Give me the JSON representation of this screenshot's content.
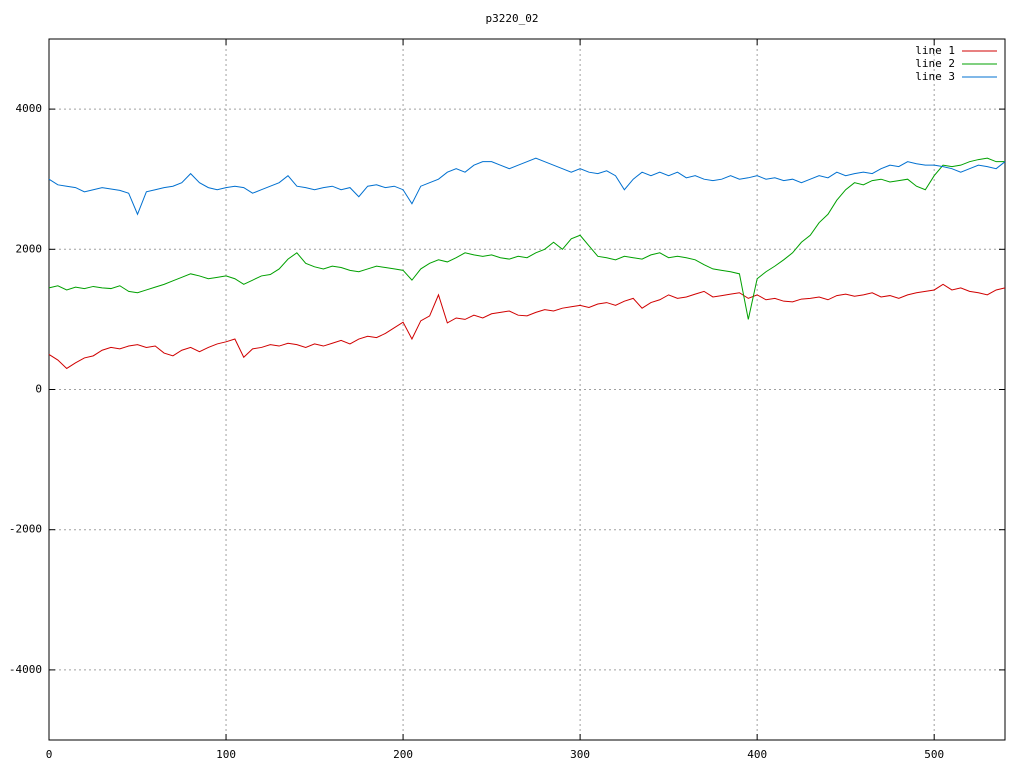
{
  "chart_data": {
    "type": "line",
    "title": "p3220_02",
    "x": [
      0,
      5,
      10,
      15,
      20,
      25,
      30,
      35,
      40,
      45,
      50,
      55,
      60,
      65,
      70,
      75,
      80,
      85,
      90,
      95,
      100,
      105,
      110,
      115,
      120,
      125,
      130,
      135,
      140,
      145,
      150,
      155,
      160,
      165,
      170,
      175,
      180,
      185,
      190,
      195,
      200,
      205,
      210,
      215,
      220,
      225,
      230,
      235,
      240,
      245,
      250,
      255,
      260,
      265,
      270,
      275,
      280,
      285,
      290,
      295,
      300,
      305,
      310,
      315,
      320,
      325,
      330,
      335,
      340,
      345,
      350,
      355,
      360,
      365,
      370,
      375,
      380,
      385,
      390,
      395,
      400,
      405,
      410,
      415,
      420,
      425,
      430,
      435,
      440,
      445,
      450,
      455,
      460,
      465,
      470,
      475,
      480,
      485,
      490,
      495,
      500,
      505,
      510,
      515,
      520,
      525,
      530,
      535,
      540
    ],
    "series": [
      {
        "name": "line 1",
        "color": "#d00000",
        "values": [
          500,
          420,
          300,
          380,
          450,
          480,
          560,
          600,
          580,
          620,
          640,
          600,
          620,
          520,
          480,
          560,
          600,
          540,
          600,
          650,
          680,
          720,
          460,
          580,
          600,
          640,
          620,
          660,
          640,
          600,
          650,
          620,
          660,
          700,
          650,
          720,
          760,
          740,
          800,
          880,
          960,
          720,
          980,
          1050,
          1350,
          950,
          1020,
          1000,
          1060,
          1020,
          1080,
          1100,
          1120,
          1060,
          1050,
          1100,
          1140,
          1120,
          1160,
          1180,
          1200,
          1170,
          1220,
          1240,
          1200,
          1260,
          1300,
          1160,
          1240,
          1280,
          1350,
          1300,
          1320,
          1360,
          1400,
          1320,
          1340,
          1360,
          1380,
          1300,
          1350,
          1280,
          1300,
          1260,
          1250,
          1290,
          1300,
          1320,
          1280,
          1340,
          1360,
          1330,
          1350,
          1380,
          1320,
          1340,
          1300,
          1350,
          1380,
          1400,
          1420,
          1500,
          1420,
          1450,
          1400,
          1380,
          1350,
          1420,
          1450
        ]
      },
      {
        "name": "line 2",
        "color": "#00a000",
        "values": [
          1450,
          1480,
          1420,
          1460,
          1440,
          1470,
          1450,
          1440,
          1480,
          1400,
          1380,
          1420,
          1460,
          1500,
          1550,
          1600,
          1650,
          1620,
          1580,
          1600,
          1620,
          1580,
          1500,
          1560,
          1620,
          1640,
          1720,
          1860,
          1950,
          1800,
          1750,
          1720,
          1760,
          1740,
          1700,
          1680,
          1720,
          1760,
          1740,
          1720,
          1700,
          1560,
          1720,
          1800,
          1850,
          1820,
          1880,
          1950,
          1920,
          1900,
          1920,
          1880,
          1860,
          1900,
          1880,
          1950,
          2000,
          2100,
          2000,
          2150,
          2200,
          2050,
          1900,
          1880,
          1850,
          1900,
          1880,
          1860,
          1920,
          1950,
          1880,
          1900,
          1880,
          1850,
          1780,
          1720,
          1700,
          1680,
          1650,
          1000,
          1580,
          1680,
          1760,
          1850,
          1950,
          2100,
          2200,
          2380,
          2500,
          2700,
          2850,
          2950,
          2920,
          2980,
          3000,
          2960,
          2980,
          3000,
          2900,
          2850,
          3050,
          3200,
          3180,
          3200,
          3250,
          3280,
          3300,
          3250,
          3250
        ]
      },
      {
        "name": "line 3",
        "color": "#0070d0",
        "values": [
          3000,
          2920,
          2900,
          2880,
          2820,
          2850,
          2880,
          2860,
          2840,
          2800,
          2500,
          2820,
          2850,
          2880,
          2900,
          2950,
          3080,
          2950,
          2880,
          2850,
          2880,
          2900,
          2880,
          2800,
          2850,
          2900,
          2950,
          3050,
          2900,
          2880,
          2850,
          2880,
          2900,
          2850,
          2880,
          2750,
          2900,
          2920,
          2880,
          2900,
          2850,
          2650,
          2900,
          2950,
          3000,
          3100,
          3150,
          3100,
          3200,
          3250,
          3250,
          3200,
          3150,
          3200,
          3250,
          3300,
          3250,
          3200,
          3150,
          3100,
          3150,
          3100,
          3080,
          3120,
          3050,
          2850,
          3000,
          3100,
          3050,
          3100,
          3050,
          3100,
          3020,
          3050,
          3000,
          2980,
          3000,
          3050,
          3000,
          3020,
          3050,
          3000,
          3020,
          2980,
          3000,
          2950,
          3000,
          3050,
          3020,
          3100,
          3050,
          3080,
          3100,
          3080,
          3150,
          3200,
          3180,
          3250,
          3220,
          3200,
          3200,
          3180,
          3150,
          3100,
          3150,
          3200,
          3180,
          3150,
          3250
        ]
      }
    ],
    "xlim": [
      0,
      540
    ],
    "ylim": [
      -5000,
      5000
    ],
    "xticks": [
      0,
      100,
      200,
      300,
      400,
      500
    ],
    "yticks": [
      -4000,
      -2000,
      0,
      2000,
      4000
    ],
    "grid": true,
    "legend": "top right"
  }
}
